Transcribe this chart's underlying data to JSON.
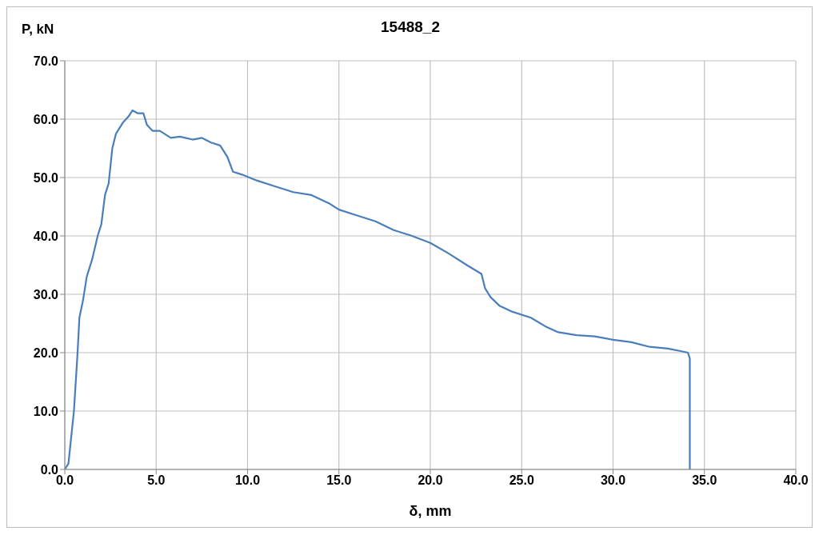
{
  "chart_data": {
    "type": "line",
    "title": "15488_2",
    "xlabel": "δ, mm",
    "ylabel": "P, kN",
    "xlim": [
      0,
      40
    ],
    "xticks": [
      {
        "value": 0,
        "label": "0.0"
      },
      {
        "value": 5,
        "label": "5.0"
      },
      {
        "value": 10,
        "label": "10.0"
      },
      {
        "value": 15,
        "label": "15.0"
      },
      {
        "value": 20,
        "label": "20.0"
      },
      {
        "value": 25,
        "label": "25.0"
      },
      {
        "value": 30,
        "label": "30.0"
      },
      {
        "value": 35,
        "label": "35.0"
      },
      {
        "value": 40,
        "label": "40.0"
      }
    ],
    "ylim": [
      0,
      70
    ],
    "yticks": [
      {
        "value": 0,
        "label": "0.0"
      },
      {
        "value": 10,
        "label": "10.0"
      },
      {
        "value": 20,
        "label": "20.0"
      },
      {
        "value": 30,
        "label": "30.0"
      },
      {
        "value": 40,
        "label": "40.0"
      },
      {
        "value": 50,
        "label": "50.0"
      },
      {
        "value": 60,
        "label": "60.0"
      },
      {
        "value": 70,
        "label": "70.0"
      }
    ],
    "grid": true,
    "legend": false,
    "marker": "none",
    "line_style": "solid",
    "series": [
      {
        "color": "#4a7ebb",
        "x": [
          0,
          0.2,
          0.5,
          0.7,
          0.8,
          1.0,
          1.2,
          1.5,
          1.8,
          2.0,
          2.2,
          2.4,
          2.6,
          2.8,
          3.0,
          3.2,
          3.5,
          3.7,
          4.0,
          4.3,
          4.5,
          4.8,
          5.2,
          5.8,
          6.3,
          7.0,
          7.5,
          8.0,
          8.5,
          8.9,
          9.2,
          9.7,
          10.5,
          11.5,
          12.5,
          13.5,
          14.5,
          15.0,
          16.0,
          17.0,
          18.0,
          19.0,
          20.0,
          21.0,
          22.0,
          22.8,
          23.0,
          23.3,
          23.8,
          24.5,
          25.5,
          26.3,
          27.0,
          28.0,
          29.0,
          30.0,
          31.0,
          32.0,
          33.0,
          33.8,
          34.1,
          34.2,
          34.2
        ],
        "values": [
          0,
          1,
          10,
          20,
          26,
          29,
          33,
          36,
          40,
          42,
          47,
          49,
          55,
          57.5,
          58.5,
          59.5,
          60.5,
          61.5,
          61,
          61,
          59,
          58,
          58,
          56.8,
          57,
          56.5,
          56.8,
          56,
          55.5,
          53.5,
          51,
          50.5,
          49.5,
          48.5,
          47.5,
          47,
          45.5,
          44.5,
          43.5,
          42.5,
          41,
          40,
          38.8,
          37,
          35,
          33.5,
          31,
          29.5,
          28,
          27,
          26,
          24.5,
          23.5,
          23,
          22.8,
          22.2,
          21.8,
          21,
          20.7,
          20.2,
          20,
          19,
          0
        ]
      }
    ]
  }
}
